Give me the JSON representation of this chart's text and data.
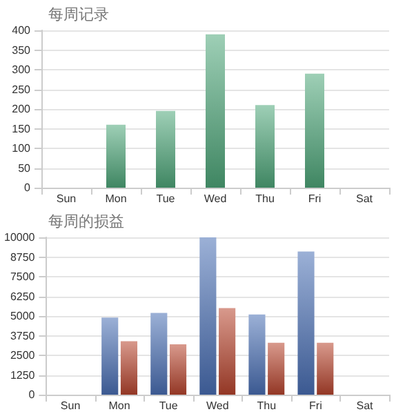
{
  "chart_data": [
    {
      "type": "bar",
      "title": "每周记录",
      "categories": [
        "Sun",
        "Mon",
        "Tue",
        "Wed",
        "Thu",
        "Fri",
        "Sat"
      ],
      "series": [
        {
          "color": "#4fa87a",
          "values": [
            null,
            160,
            195,
            390,
            210,
            290,
            null
          ]
        }
      ],
      "ylim": [
        0,
        400
      ],
      "yticks": [
        0,
        50,
        100,
        150,
        200,
        250,
        300,
        350,
        400
      ],
      "grid": "y"
    },
    {
      "type": "bar",
      "title": "每周的损益",
      "categories": [
        "Sun",
        "Mon",
        "Tue",
        "Wed",
        "Thu",
        "Fri",
        "Sat"
      ],
      "series": [
        {
          "color": "#4a6fb5",
          "values": [
            null,
            4900,
            5200,
            10000,
            5100,
            9100,
            null
          ]
        },
        {
          "color": "#b8452e",
          "values": [
            null,
            3400,
            3200,
            5500,
            3300,
            3300,
            null
          ]
        }
      ],
      "ylim": [
        0,
        10000
      ],
      "yticks": [
        0,
        1250,
        2500,
        3750,
        5000,
        6250,
        7500,
        8750,
        10000
      ],
      "grid": "y"
    }
  ]
}
